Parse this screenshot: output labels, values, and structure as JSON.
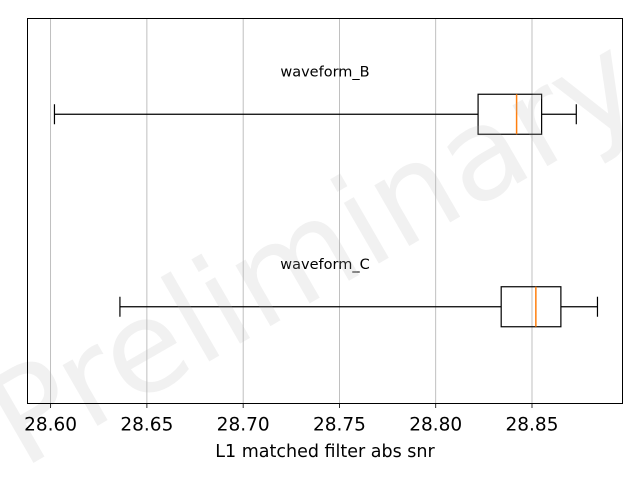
{
  "chart_data": {
    "type": "boxplot",
    "orientation": "horizontal",
    "title": "",
    "xlabel": "L1 matched filter abs snr",
    "ylabel": "",
    "xlim": [
      28.588,
      28.897
    ],
    "xticks": [
      28.6,
      28.65,
      28.7,
      28.75,
      28.8,
      28.85
    ],
    "xtick_labels": [
      "28.60",
      "28.65",
      "28.70",
      "28.75",
      "28.80",
      "28.85"
    ],
    "grid": "vertical",
    "watermark": "Preliminary",
    "series": [
      {
        "name": "waveform_B",
        "whisker_low": 28.602,
        "q1": 28.822,
        "median": 28.842,
        "q3": 28.855,
        "whisker_high": 28.873
      },
      {
        "name": "waveform_C",
        "whisker_low": 28.636,
        "q1": 28.834,
        "median": 28.852,
        "q3": 28.865,
        "whisker_high": 28.884
      }
    ],
    "colors": {
      "box": "#000000",
      "median": "#ff7f0e",
      "grid": "#b0b0b0",
      "frame": "#000000"
    }
  }
}
